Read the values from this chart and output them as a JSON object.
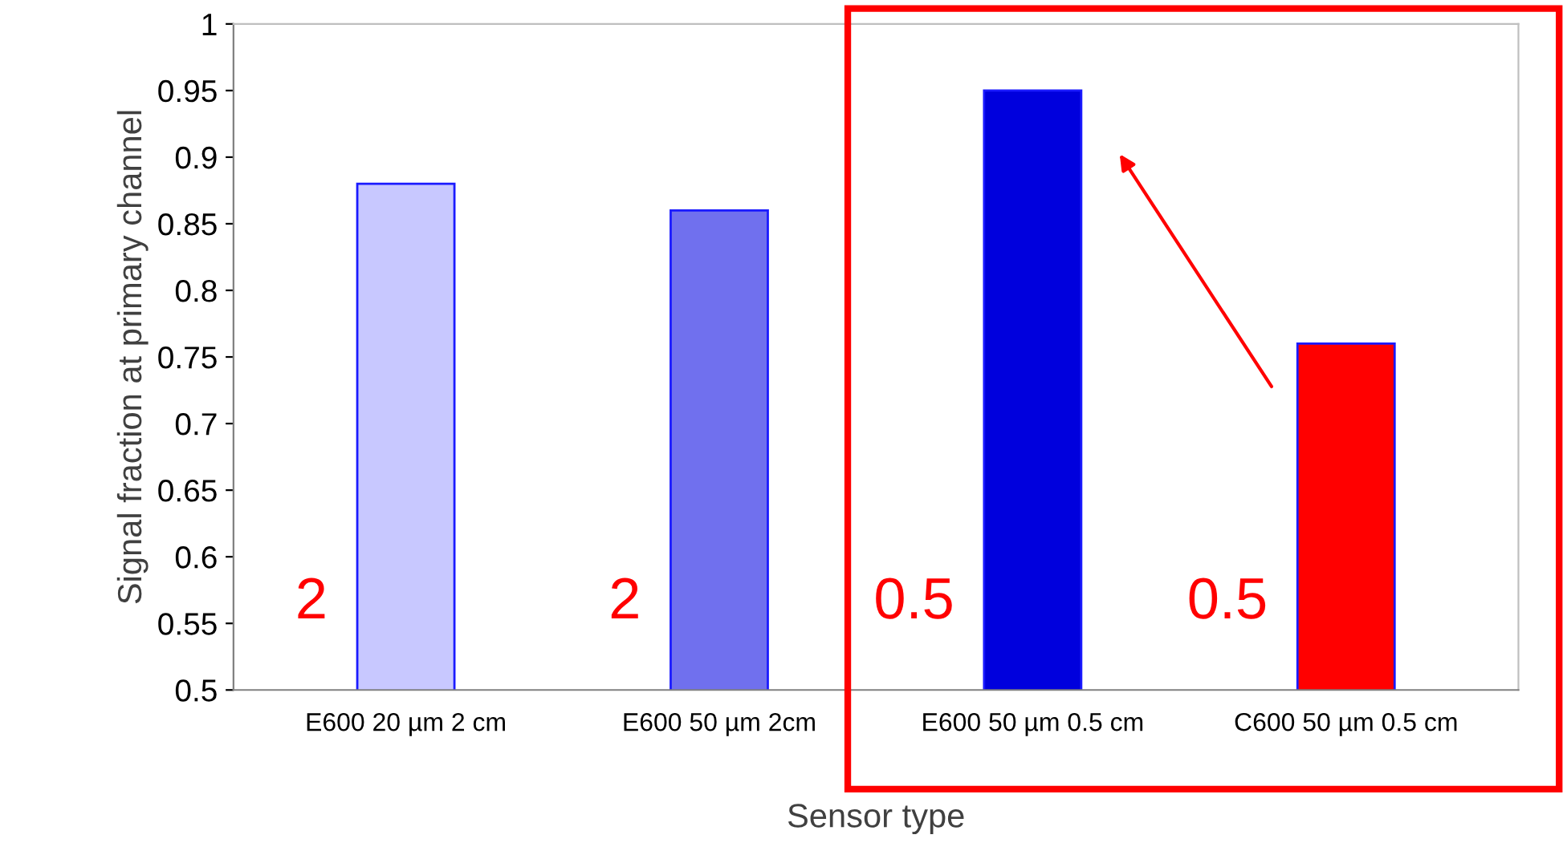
{
  "chart_data": {
    "type": "bar",
    "xlabel": "Sensor type",
    "ylabel": "Signal fraction at primary channel",
    "categories": [
      "E600 20 µm 2 cm",
      "E600 50 µm 2cm",
      "E600 50 µm 0.5 cm",
      "C600 50 µm 0.5 cm"
    ],
    "values": [
      0.88,
      0.86,
      0.95,
      0.76
    ],
    "colors": [
      "#c8c8ff",
      "#7070ee",
      "#0000dd",
      "#ff0000"
    ],
    "ylim": [
      0.5,
      1
    ],
    "yticks": [
      0.5,
      0.55,
      0.6,
      0.65,
      0.7,
      0.75,
      0.8,
      0.85,
      0.9,
      0.95,
      1
    ],
    "grid": false,
    "legend": false,
    "annotations": [
      "2",
      "2",
      "0.5",
      "0.5"
    ]
  }
}
